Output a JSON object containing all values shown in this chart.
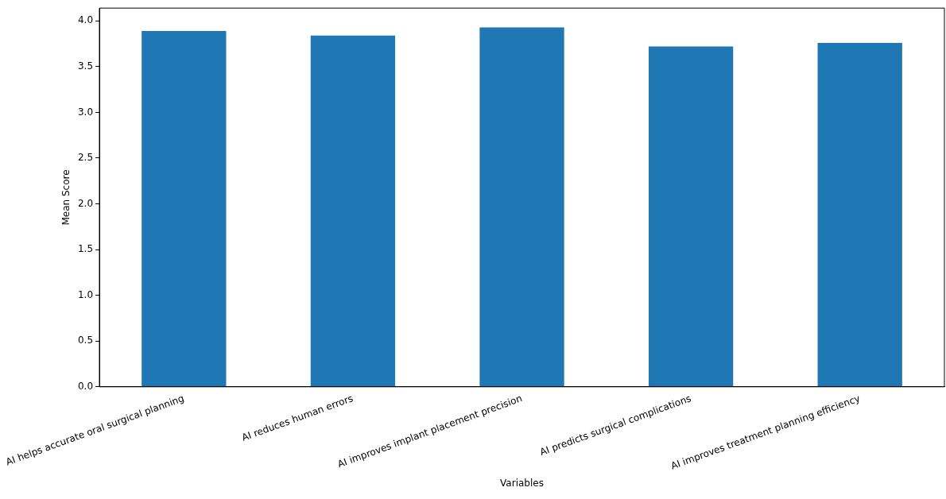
{
  "chart_data": {
    "type": "bar",
    "xlabel": "Variables",
    "ylabel": "Mean Score",
    "categories": [
      "AI helps accurate oral surgical planning",
      "AI reduces human errors",
      "AI improves implant placement precision",
      "AI predicts surgical complications",
      "AI improves treatment planning efficiency"
    ],
    "values": [
      3.89,
      3.84,
      3.93,
      3.72,
      3.76
    ],
    "color": "#1f77b4",
    "ylim": [
      0,
      4.14
    ],
    "yticks": [
      {
        "value": 0,
        "label": "0.0"
      },
      {
        "value": 0.5,
        "label": "0.5"
      },
      {
        "value": 1,
        "label": "1.0"
      },
      {
        "value": 1.5,
        "label": "1.5"
      },
      {
        "value": 2,
        "label": "2.0"
      },
      {
        "value": 2.5,
        "label": "2.5"
      },
      {
        "value": 3,
        "label": "3.0"
      },
      {
        "value": 3.5,
        "label": "3.5"
      },
      {
        "value": 4,
        "label": "4.0"
      }
    ],
    "grid": false,
    "legend": false
  }
}
